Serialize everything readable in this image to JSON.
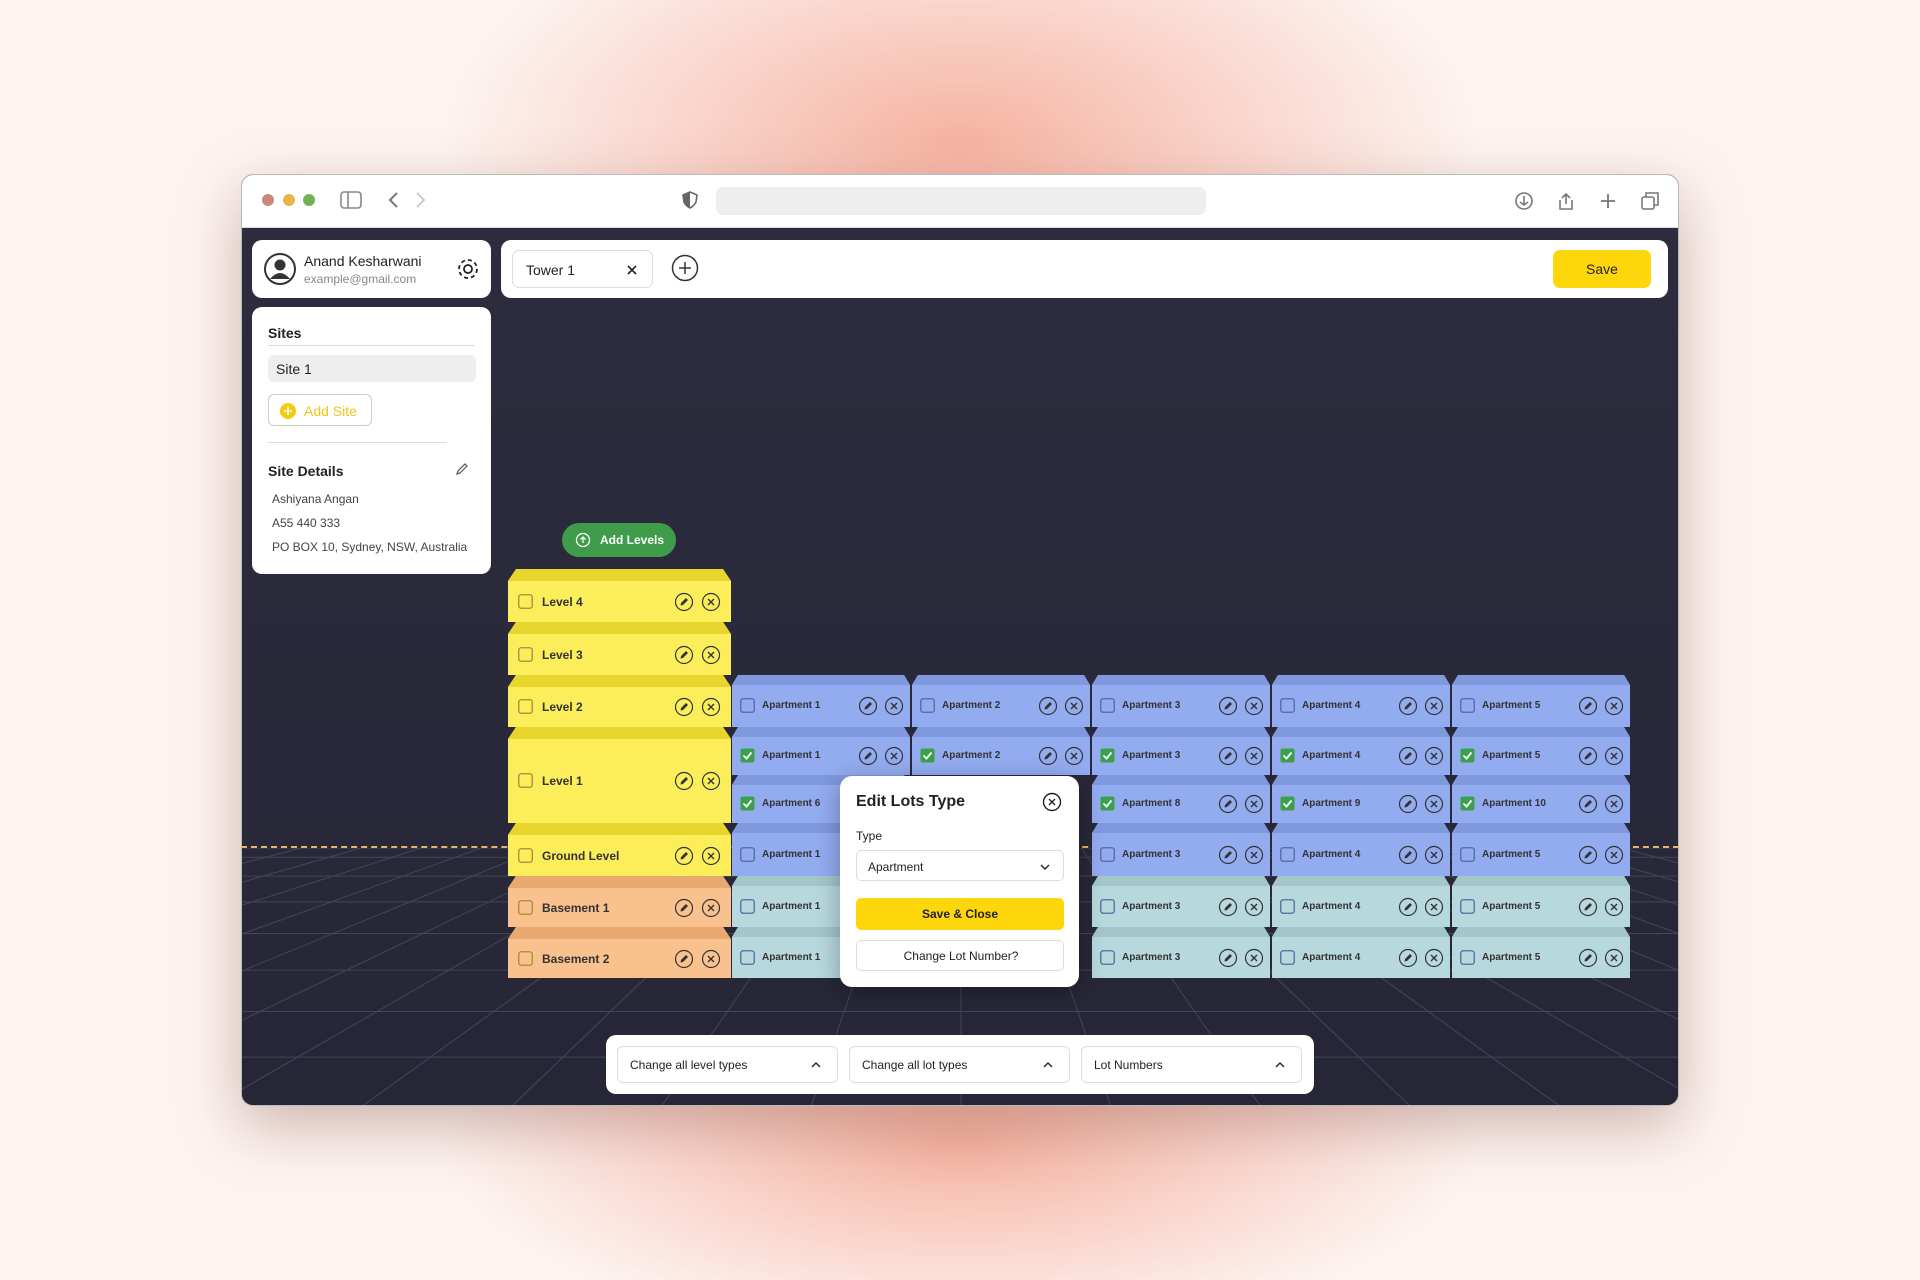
{
  "user": {
    "name": "Anand Kesharwani",
    "email": "example@gmail.com"
  },
  "sites": {
    "title": "Sites",
    "items": [
      "Site 1"
    ],
    "add": "Add Site"
  },
  "site_details": {
    "title": "Site Details",
    "lines": [
      "Ashiyana Angan",
      "A55 440 333",
      "PO BOX 10, Sydney, NSW, Australia"
    ]
  },
  "tabs": [
    "Tower 1"
  ],
  "save": "Save",
  "add_levels": "Add Levels",
  "levels": [
    {
      "name": "Level 4",
      "lots": []
    },
    {
      "name": "Level 3",
      "lots": []
    },
    {
      "name": "Level 2",
      "lots": [
        [
          {
            "label": "Apartment 1",
            "checked": false
          },
          {
            "label": "Apartment 2",
            "checked": false
          },
          {
            "label": "Apartment 3",
            "checked": false
          },
          {
            "label": "Apartment 4",
            "checked": false
          },
          {
            "label": "Apartment 5",
            "checked": false
          }
        ]
      ]
    },
    {
      "name": "Level 1",
      "lots": [
        [
          {
            "label": "Apartment 1",
            "checked": true
          },
          {
            "label": "Apartment 2",
            "checked": true
          },
          {
            "label": "Apartment 3",
            "checked": true
          },
          {
            "label": "Apartment 4",
            "checked": true
          },
          {
            "label": "Apartment 5",
            "checked": true
          }
        ],
        [
          {
            "label": "Apartment 6",
            "checked": true
          },
          null,
          {
            "label": "Apartment 8",
            "checked": true
          },
          {
            "label": "Apartment 9",
            "checked": true
          },
          {
            "label": "Apartment 10",
            "checked": true
          }
        ]
      ]
    },
    {
      "name": "Ground Level",
      "lots": [
        [
          {
            "label": "Apartment 1",
            "checked": false
          },
          null,
          {
            "label": "Apartment 3",
            "checked": false
          },
          {
            "label": "Apartment 4",
            "checked": false
          },
          {
            "label": "Apartment 5",
            "checked": false
          }
        ]
      ]
    },
    {
      "name": "Basement 1",
      "lots": [
        [
          {
            "label": "Apartment 1",
            "checked": false
          },
          null,
          {
            "label": "Apartment 3",
            "checked": false
          },
          {
            "label": "Apartment 4",
            "checked": false
          },
          {
            "label": "Apartment 5",
            "checked": false
          }
        ]
      ]
    },
    {
      "name": "Basement 2",
      "lots": [
        [
          {
            "label": "Apartment 1",
            "checked": false
          },
          null,
          {
            "label": "Apartment 3",
            "checked": false
          },
          {
            "label": "Apartment 4",
            "checked": false
          },
          {
            "label": "Apartment 5",
            "checked": false
          }
        ]
      ]
    }
  ],
  "modal": {
    "title": "Edit Lots Type",
    "type_label": "Type",
    "selected": "Apartment",
    "primary": "Save & Close",
    "secondary": "Change Lot Number?"
  },
  "bottom_bar": [
    "Change all level types",
    "Change all lot types",
    "Lot Numbers"
  ]
}
